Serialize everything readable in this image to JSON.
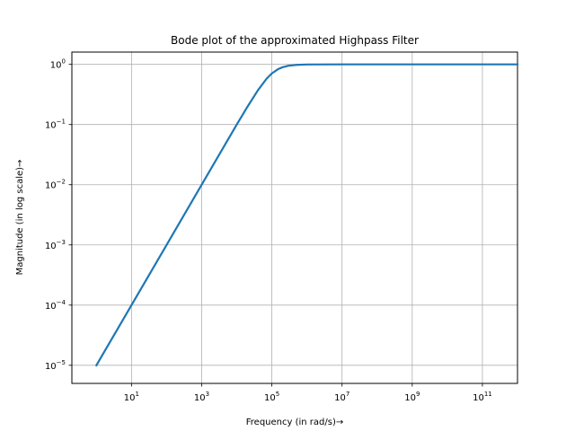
{
  "chart_data": {
    "type": "line",
    "title": "Bode plot of the approximated Highpass Filter",
    "xlabel": "Frequency (in rad/s)→",
    "ylabel": "Magnitude (in log scale)→",
    "xscale": "log",
    "yscale": "log",
    "grid": true,
    "xlim": [
      0.2,
      1000000000000.0
    ],
    "ylim": [
      5e-06,
      1.6
    ],
    "xticks": [
      {
        "base": "10",
        "exp": "1",
        "value": 10
      },
      {
        "base": "10",
        "exp": "3",
        "value": 1000
      },
      {
        "base": "10",
        "exp": "5",
        "value": 100000
      },
      {
        "base": "10",
        "exp": "7",
        "value": 10000000
      },
      {
        "base": "10",
        "exp": "9",
        "value": 1000000000
      },
      {
        "base": "10",
        "exp": "11",
        "value": 100000000000
      }
    ],
    "yticks": [
      {
        "base": "10",
        "exp": "−5",
        "value": 1e-05
      },
      {
        "base": "10",
        "exp": "−4",
        "value": 0.0001
      },
      {
        "base": "10",
        "exp": "−3",
        "value": 0.001
      },
      {
        "base": "10",
        "exp": "−2",
        "value": 0.01
      },
      {
        "base": "10",
        "exp": "−1",
        "value": 0.1
      },
      {
        "base": "10",
        "exp": "0",
        "value": 1
      }
    ],
    "series": [
      {
        "color": "#1f77b4",
        "points": [
          [
            1,
            1e-05
          ],
          [
            10,
            0.0001
          ],
          [
            100,
            0.001
          ],
          [
            1000,
            0.01
          ],
          [
            3162,
            0.0316
          ],
          [
            10000,
            0.1
          ],
          [
            20000,
            0.196
          ],
          [
            40000,
            0.371
          ],
          [
            70000,
            0.573
          ],
          [
            100000,
            0.707
          ],
          [
            150000,
            0.832
          ],
          [
            200000,
            0.894
          ],
          [
            300000,
            0.949
          ],
          [
            500000,
            0.981
          ],
          [
            1000000,
            0.995
          ],
          [
            10000000,
            1.0
          ],
          [
            1000000000,
            1.0
          ],
          [
            1000000000000,
            1.0
          ]
        ]
      }
    ]
  }
}
